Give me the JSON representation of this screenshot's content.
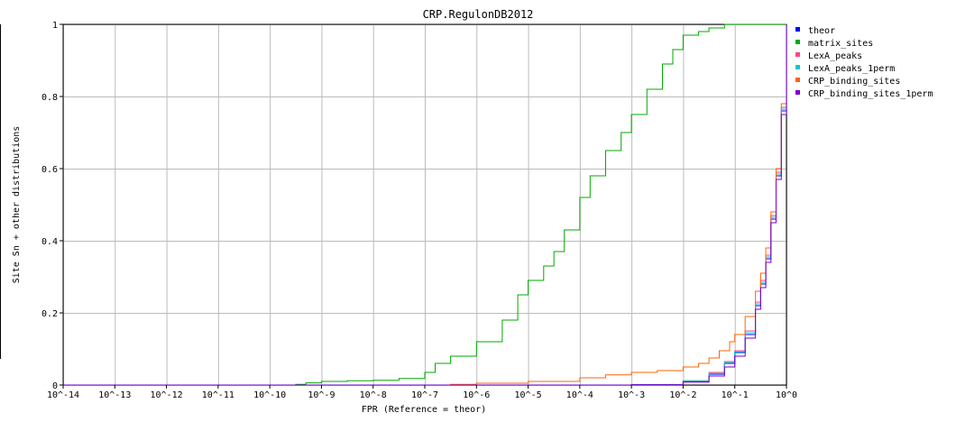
{
  "chart_data": {
    "type": "line",
    "title": "CRP.RegulonDB2012",
    "xlabel": "FPR (Reference = theor)",
    "ylabel": "Site Sn + other distributions",
    "x_scale": "log10",
    "xlim": [
      -14,
      0
    ],
    "ylim": [
      0,
      1
    ],
    "grid": true,
    "legend_position": "right",
    "x_ticks": [
      "10^-14",
      "10^-13",
      "10^-12",
      "10^-11",
      "10^-10",
      "10^-9",
      "10^-8",
      "10^-7",
      "10^-6",
      "10^-5",
      "10^-4",
      "10^-3",
      "10^-2",
      "10^-1",
      "10^0"
    ],
    "y_ticks": [
      "0",
      "0.2",
      "0.4",
      "0.6",
      "0.8",
      "1"
    ],
    "series": [
      {
        "name": "theor",
        "color": "#0000ff",
        "x": [
          -14,
          -3,
          -2,
          -1.5,
          -1.2,
          -1,
          -0.8,
          -0.6,
          -0.5,
          -0.4,
          -0.3,
          -0.2,
          -0.1,
          0
        ],
        "y": [
          0,
          0.001,
          0.01,
          0.03,
          0.06,
          0.09,
          0.14,
          0.22,
          0.28,
          0.35,
          0.46,
          0.58,
          0.76,
          1.0
        ]
      },
      {
        "name": "matrix_sites",
        "color": "#00aa00",
        "x": [
          -13,
          -9.5,
          -9.3,
          -9.0,
          -8.5,
          -8.0,
          -7.5,
          -7.0,
          -6.8,
          -6.5,
          -6.0,
          -5.5,
          -5.2,
          -5.0,
          -4.7,
          -4.5,
          -4.3,
          -4.0,
          -3.8,
          -3.5,
          -3.2,
          -3.0,
          -2.7,
          -2.4,
          -2.2,
          -2.0,
          -1.7,
          -1.5,
          -1.2,
          -1.0,
          -0.5,
          0
        ],
        "y": [
          0,
          0.002,
          0.006,
          0.01,
          0.012,
          0.013,
          0.018,
          0.035,
          0.06,
          0.08,
          0.12,
          0.18,
          0.25,
          0.29,
          0.33,
          0.37,
          0.43,
          0.52,
          0.58,
          0.65,
          0.7,
          0.75,
          0.82,
          0.89,
          0.93,
          0.97,
          0.98,
          0.99,
          1.0,
          1.0,
          1.0,
          1.0
        ]
      },
      {
        "name": "LexA_peaks",
        "color": "#ff4488",
        "x": [
          -14,
          -3,
          -2,
          -1.5,
          -1.2,
          -1,
          -0.8,
          -0.6,
          -0.5,
          -0.4,
          -0.3,
          -0.2,
          -0.1,
          0
        ],
        "y": [
          0,
          0.001,
          0.012,
          0.035,
          0.065,
          0.095,
          0.15,
          0.23,
          0.29,
          0.36,
          0.47,
          0.59,
          0.77,
          1.0
        ]
      },
      {
        "name": "LexA_peaks_1perm",
        "color": "#00cccc",
        "x": [
          -14,
          -3,
          -2,
          -1.5,
          -1.2,
          -1,
          -0.8,
          -0.6,
          -0.5,
          -0.4,
          -0.3,
          -0.2,
          -0.1,
          0
        ],
        "y": [
          0,
          0.001,
          0.011,
          0.032,
          0.062,
          0.092,
          0.145,
          0.225,
          0.285,
          0.355,
          0.465,
          0.585,
          0.765,
          1.0
        ]
      },
      {
        "name": "CRP_binding_sites",
        "color": "#ff6600",
        "x": [
          -14,
          -6.5,
          -6,
          -5,
          -4,
          -3.5,
          -3,
          -2.5,
          -2,
          -1.7,
          -1.5,
          -1.3,
          -1.1,
          -1.0,
          -0.8,
          -0.6,
          -0.5,
          -0.4,
          -0.3,
          -0.2,
          -0.1,
          0
        ],
        "y": [
          0,
          0.002,
          0.005,
          0.01,
          0.02,
          0.028,
          0.035,
          0.04,
          0.05,
          0.06,
          0.075,
          0.095,
          0.12,
          0.14,
          0.19,
          0.26,
          0.31,
          0.38,
          0.48,
          0.6,
          0.78,
          1.0
        ]
      },
      {
        "name": "CRP_binding_sites_1perm",
        "color": "#7700cc",
        "x": [
          -14,
          -3,
          -2,
          -1.5,
          -1.2,
          -1,
          -0.8,
          -0.6,
          -0.5,
          -0.4,
          -0.3,
          -0.2,
          -0.1,
          0
        ],
        "y": [
          0,
          0.001,
          0.008,
          0.025,
          0.05,
          0.08,
          0.13,
          0.21,
          0.27,
          0.34,
          0.45,
          0.57,
          0.75,
          1.0
        ]
      }
    ]
  }
}
